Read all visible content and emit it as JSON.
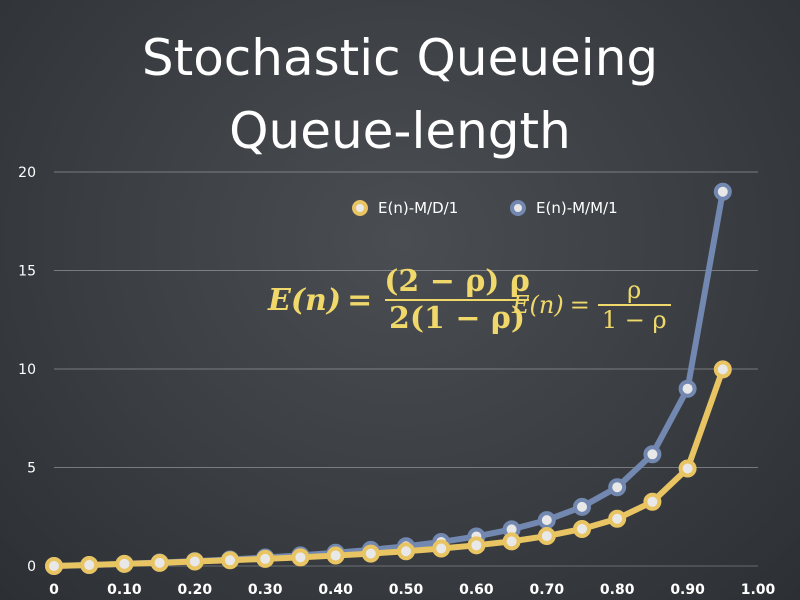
{
  "title_line1": "Stochastic Queueing",
  "title_line2": "Queue-length",
  "formula_md1": {
    "lhs": "E(n)",
    "eq": "=",
    "numerator": "(2 − ρ) ρ",
    "denominator": "2(1 − ρ)"
  },
  "formula_mm1": {
    "lhs": "E(n)",
    "eq": "=",
    "numerator": "ρ",
    "denominator": "1 − ρ"
  },
  "chart_data": {
    "type": "line",
    "x": [
      0,
      0.05,
      0.1,
      0.15,
      0.2,
      0.25,
      0.3,
      0.35,
      0.4,
      0.45,
      0.5,
      0.55,
      0.6,
      0.65,
      0.7,
      0.75,
      0.8,
      0.85,
      0.9,
      0.95
    ],
    "series": [
      {
        "name": "E(n)-M/D/1",
        "color": "#e8c463",
        "values": [
          0,
          0.05,
          0.11,
          0.16,
          0.23,
          0.29,
          0.36,
          0.44,
          0.53,
          0.63,
          0.75,
          0.89,
          1.05,
          1.25,
          1.52,
          1.88,
          2.4,
          3.26,
          4.95,
          9.98
        ]
      },
      {
        "name": "E(n)-M/M/1",
        "color": "#7388b0",
        "values": [
          0,
          0.05,
          0.11,
          0.18,
          0.25,
          0.33,
          0.43,
          0.54,
          0.67,
          0.82,
          1.0,
          1.22,
          1.5,
          1.86,
          2.33,
          3.0,
          4.0,
          5.67,
          9.0,
          19.0
        ]
      }
    ],
    "xlim": [
      0,
      1.0
    ],
    "ylim": [
      0,
      20
    ],
    "xticks": [
      "0",
      "0.10",
      "0.20",
      "0.30",
      "0.40",
      "0.50",
      "0.60",
      "0.70",
      "0.80",
      "0.90",
      "1.00"
    ],
    "xtick_values": [
      0,
      0.1,
      0.2,
      0.3,
      0.4,
      0.5,
      0.6,
      0.7,
      0.8,
      0.9,
      1.0
    ],
    "yticks": [
      "0",
      "5",
      "10",
      "15",
      "20"
    ],
    "ytick_values": [
      0,
      5,
      10,
      15,
      20
    ],
    "grid": true,
    "legend": "top-center"
  }
}
